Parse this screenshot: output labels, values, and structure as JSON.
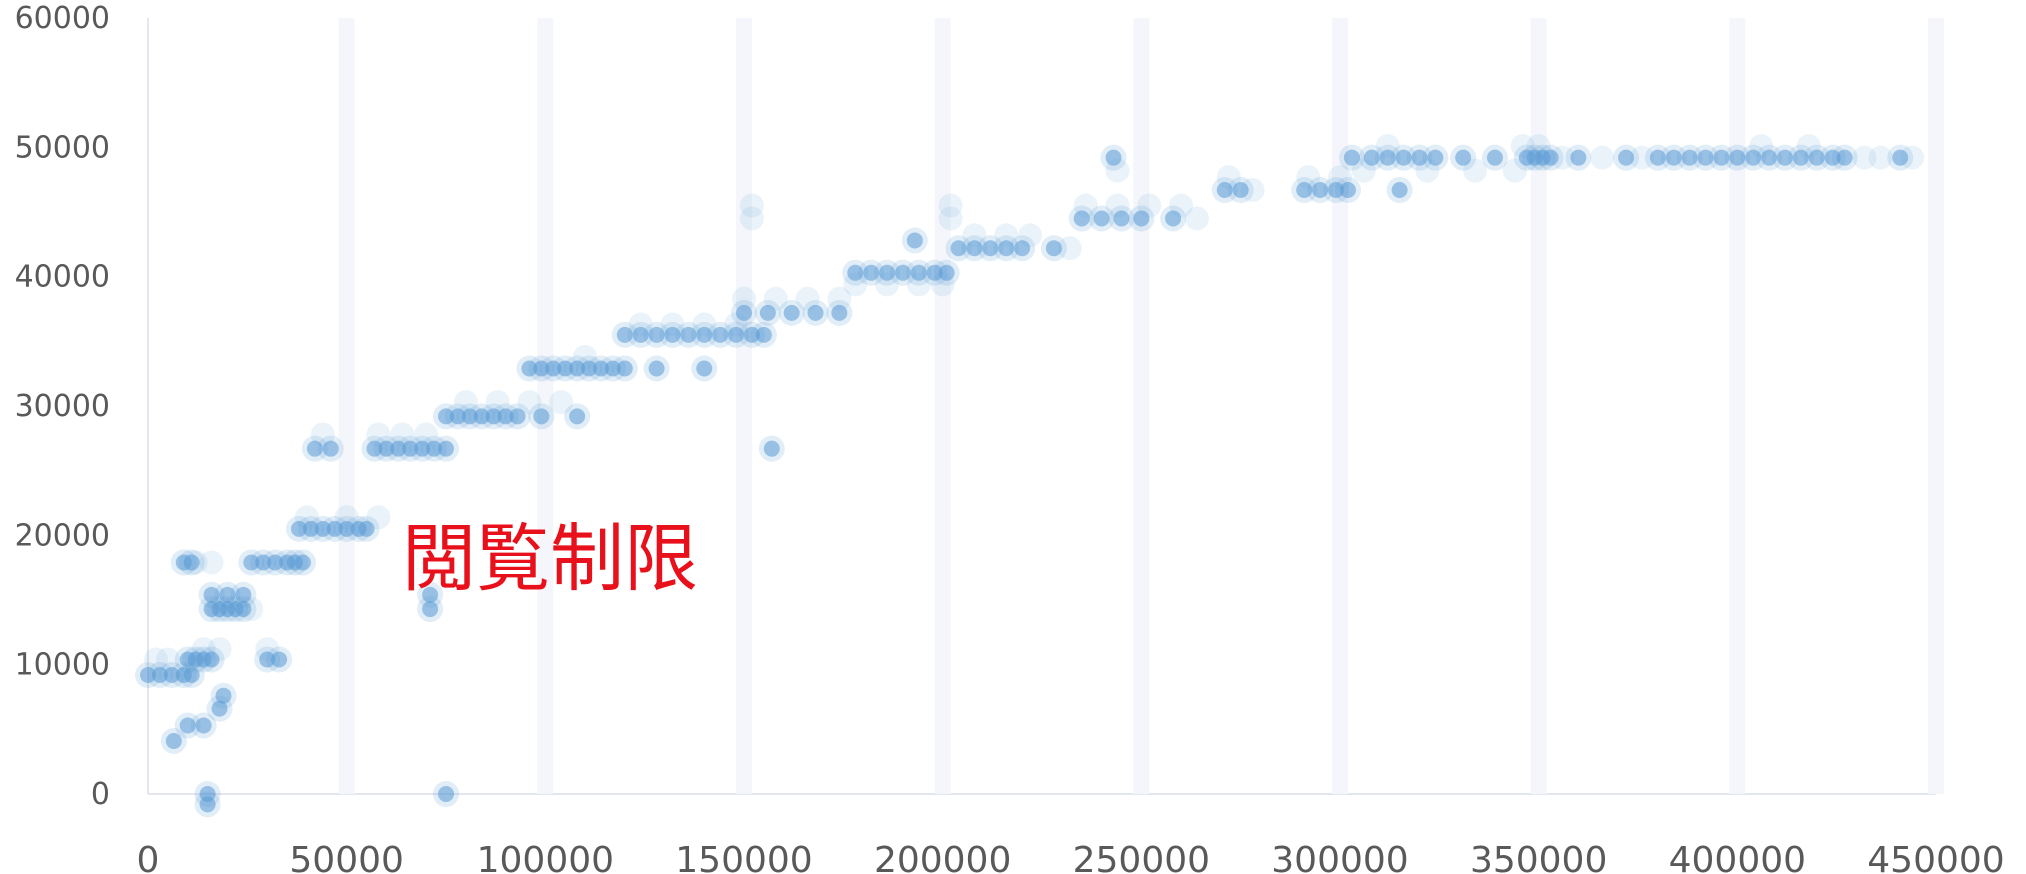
{
  "chart_data": {
    "type": "scatter",
    "title": "",
    "xlabel": "",
    "ylabel": "",
    "xlim": [
      0,
      450000
    ],
    "ylim": [
      0,
      60000
    ],
    "x_ticks": [
      "0",
      "50000",
      "100000",
      "150000",
      "200000",
      "250000",
      "300000",
      "350000",
      "400000",
      "450000"
    ],
    "y_ticks": [
      "0",
      "10000",
      "20000",
      "30000",
      "40000",
      "50000",
      "60000"
    ],
    "grid": false,
    "legend": "none",
    "marker_color": "#5b9bd5",
    "annotation": "閲覧制限",
    "series": [
      {
        "points": [
          [
            0,
            9200
          ],
          [
            3000,
            9200
          ],
          [
            6000,
            9200
          ],
          [
            9000,
            9200
          ],
          [
            11000,
            9200
          ],
          [
            6500,
            4100
          ],
          [
            10000,
            5300
          ],
          [
            14000,
            5300
          ],
          [
            9000,
            17900
          ],
          [
            11000,
            17900
          ],
          [
            10000,
            10400
          ],
          [
            12000,
            10400
          ],
          [
            14000,
            10400
          ],
          [
            16000,
            10400
          ],
          [
            15000,
            0
          ],
          [
            15000,
            -800
          ],
          [
            18000,
            6600
          ],
          [
            19000,
            7600
          ],
          [
            16000,
            14300
          ],
          [
            18000,
            14300
          ],
          [
            20000,
            14300
          ],
          [
            22000,
            14300
          ],
          [
            24000,
            14300
          ],
          [
            16000,
            15400
          ],
          [
            20000,
            15400
          ],
          [
            24000,
            15400
          ],
          [
            26000,
            17900
          ],
          [
            29000,
            17900
          ],
          [
            32000,
            17900
          ],
          [
            35000,
            17900
          ],
          [
            37000,
            17900
          ],
          [
            39000,
            17900
          ],
          [
            30000,
            10400
          ],
          [
            33000,
            10400
          ],
          [
            38000,
            20500
          ],
          [
            41000,
            20500
          ],
          [
            44000,
            20500
          ],
          [
            47000,
            20500
          ],
          [
            50000,
            20500
          ],
          [
            53000,
            20500
          ],
          [
            55000,
            20500
          ],
          [
            42000,
            26700
          ],
          [
            46000,
            26700
          ],
          [
            57000,
            26700
          ],
          [
            60000,
            26700
          ],
          [
            63000,
            26700
          ],
          [
            66000,
            26700
          ],
          [
            69000,
            26700
          ],
          [
            72000,
            26700
          ],
          [
            75000,
            26700
          ],
          [
            71000,
            14300
          ],
          [
            71000,
            15400
          ],
          [
            75000,
            0
          ],
          [
            75000,
            29200
          ],
          [
            78000,
            29200
          ],
          [
            81000,
            29200
          ],
          [
            84000,
            29200
          ],
          [
            87000,
            29200
          ],
          [
            90000,
            29200
          ],
          [
            93000,
            29200
          ],
          [
            99000,
            29200
          ],
          [
            108000,
            29200
          ],
          [
            96000,
            32900
          ],
          [
            99000,
            32900
          ],
          [
            102000,
            32900
          ],
          [
            105000,
            32900
          ],
          [
            108000,
            32900
          ],
          [
            111000,
            32900
          ],
          [
            114000,
            32900
          ],
          [
            117000,
            32900
          ],
          [
            120000,
            32900
          ],
          [
            128000,
            32900
          ],
          [
            140000,
            32900
          ],
          [
            120000,
            35500
          ],
          [
            124000,
            35500
          ],
          [
            128000,
            35500
          ],
          [
            132000,
            35500
          ],
          [
            136000,
            35500
          ],
          [
            140000,
            35500
          ],
          [
            144000,
            35500
          ],
          [
            148000,
            35500
          ],
          [
            152000,
            35500
          ],
          [
            155000,
            35500
          ],
          [
            150000,
            37200
          ],
          [
            156000,
            37200
          ],
          [
            162000,
            37200
          ],
          [
            168000,
            37200
          ],
          [
            174000,
            37200
          ],
          [
            157000,
            26700
          ],
          [
            178000,
            40300
          ],
          [
            182000,
            40300
          ],
          [
            186000,
            40300
          ],
          [
            190000,
            40300
          ],
          [
            194000,
            40300
          ],
          [
            198000,
            40300
          ],
          [
            201000,
            40300
          ],
          [
            193000,
            42800
          ],
          [
            204000,
            42200
          ],
          [
            208000,
            42200
          ],
          [
            212000,
            42200
          ],
          [
            216000,
            42200
          ],
          [
            220000,
            42200
          ],
          [
            228000,
            42200
          ],
          [
            235000,
            44500
          ],
          [
            240000,
            44500
          ],
          [
            245000,
            44500
          ],
          [
            250000,
            44500
          ],
          [
            258000,
            44500
          ],
          [
            243000,
            49200
          ],
          [
            271000,
            46700
          ],
          [
            275000,
            46700
          ],
          [
            291000,
            46700
          ],
          [
            295000,
            46700
          ],
          [
            299000,
            46700
          ],
          [
            302000,
            46700
          ],
          [
            303000,
            49200
          ],
          [
            308000,
            49200
          ],
          [
            312000,
            49200
          ],
          [
            316000,
            49200
          ],
          [
            320000,
            49200
          ],
          [
            324000,
            49200
          ],
          [
            331000,
            49200
          ],
          [
            339000,
            49200
          ],
          [
            315000,
            46700
          ],
          [
            347000,
            49200
          ],
          [
            349000,
            49200
          ],
          [
            351000,
            49200
          ],
          [
            353000,
            49200
          ],
          [
            360000,
            49200
          ],
          [
            372000,
            49200
          ],
          [
            380000,
            49200
          ],
          [
            384000,
            49200
          ],
          [
            388000,
            49200
          ],
          [
            392000,
            49200
          ],
          [
            396000,
            49200
          ],
          [
            400000,
            49200
          ],
          [
            404000,
            49200
          ],
          [
            408000,
            49200
          ],
          [
            412000,
            49200
          ],
          [
            416000,
            49200
          ],
          [
            420000,
            49200
          ],
          [
            424000,
            49200
          ],
          [
            427000,
            49200
          ],
          [
            441000,
            49200
          ]
        ]
      }
    ],
    "faint_points": [
      [
        2000,
        10400
      ],
      [
        5000,
        10400
      ],
      [
        14000,
        11200
      ],
      [
        18000,
        11200
      ],
      [
        12000,
        17900
      ],
      [
        16000,
        17900
      ],
      [
        30000,
        11200
      ],
      [
        26000,
        14300
      ],
      [
        40000,
        21400
      ],
      [
        50000,
        21400
      ],
      [
        58000,
        21400
      ],
      [
        44000,
        27800
      ],
      [
        58000,
        27800
      ],
      [
        64000,
        27800
      ],
      [
        70000,
        27800
      ],
      [
        80000,
        30300
      ],
      [
        88000,
        30300
      ],
      [
        96000,
        30300
      ],
      [
        104000,
        30300
      ],
      [
        110000,
        33800
      ],
      [
        124000,
        36300
      ],
      [
        132000,
        36300
      ],
      [
        140000,
        36300
      ],
      [
        148000,
        36300
      ],
      [
        150000,
        38300
      ],
      [
        158000,
        38300
      ],
      [
        166000,
        38300
      ],
      [
        174000,
        38300
      ],
      [
        152000,
        44500
      ],
      [
        152000,
        45500
      ],
      [
        178000,
        39400
      ],
      [
        186000,
        39400
      ],
      [
        194000,
        39400
      ],
      [
        200000,
        39400
      ],
      [
        202000,
        44500
      ],
      [
        202000,
        45500
      ],
      [
        208000,
        43200
      ],
      [
        216000,
        43200
      ],
      [
        222000,
        43200
      ],
      [
        232000,
        42200
      ],
      [
        236000,
        45500
      ],
      [
        244000,
        45500
      ],
      [
        252000,
        45500
      ],
      [
        260000,
        45500
      ],
      [
        264000,
        44500
      ],
      [
        272000,
        47700
      ],
      [
        278000,
        46700
      ],
      [
        292000,
        47700
      ],
      [
        300000,
        47700
      ],
      [
        306000,
        48200
      ],
      [
        312000,
        50100
      ],
      [
        322000,
        48200
      ],
      [
        334000,
        48200
      ],
      [
        344000,
        48200
      ],
      [
        356000,
        49200
      ],
      [
        366000,
        49200
      ],
      [
        376000,
        49200
      ],
      [
        406000,
        50100
      ],
      [
        418000,
        50100
      ],
      [
        432000,
        49200
      ],
      [
        436000,
        49200
      ],
      [
        444000,
        49200
      ],
      [
        346000,
        50100
      ],
      [
        350000,
        50100
      ],
      [
        244000,
        48200
      ]
    ]
  }
}
